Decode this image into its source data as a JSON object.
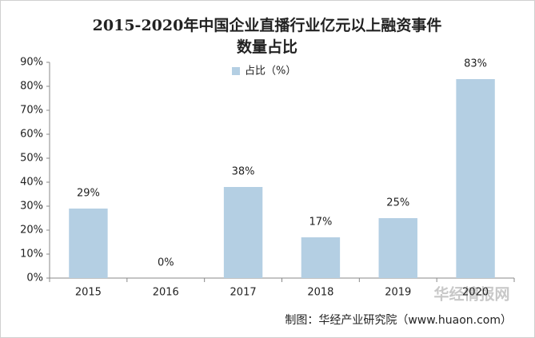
{
  "chart_data": {
    "type": "bar",
    "title": [
      "2015-2020年中国企业直播行业亿元以上融资事件",
      "数量占比"
    ],
    "categories": [
      "2015",
      "2016",
      "2017",
      "2018",
      "2019",
      "2020"
    ],
    "series": [
      {
        "name": "占比（%）",
        "color": "#b4cfe3",
        "values": [
          29,
          0,
          38,
          17,
          25,
          83
        ],
        "value_labels": [
          "29%",
          "0%",
          "38%",
          "17%",
          "25%",
          "83%"
        ]
      }
    ],
    "ylim": [
      0,
      90
    ],
    "yticks": [
      {
        "value": 0,
        "label": "0%"
      },
      {
        "value": 10,
        "label": "10%"
      },
      {
        "value": 20,
        "label": "20%"
      },
      {
        "value": 30,
        "label": "30%"
      },
      {
        "value": 40,
        "label": "40%"
      },
      {
        "value": 50,
        "label": "50%"
      },
      {
        "value": 60,
        "label": "60%"
      },
      {
        "value": 70,
        "label": "70%"
      },
      {
        "value": 80,
        "label": "80%"
      },
      {
        "value": 90,
        "label": "90%"
      }
    ],
    "grid": false,
    "legend": "top",
    "source": "制图：华经产业研究院（www.huaon.com）",
    "watermark": "华经情报网"
  }
}
